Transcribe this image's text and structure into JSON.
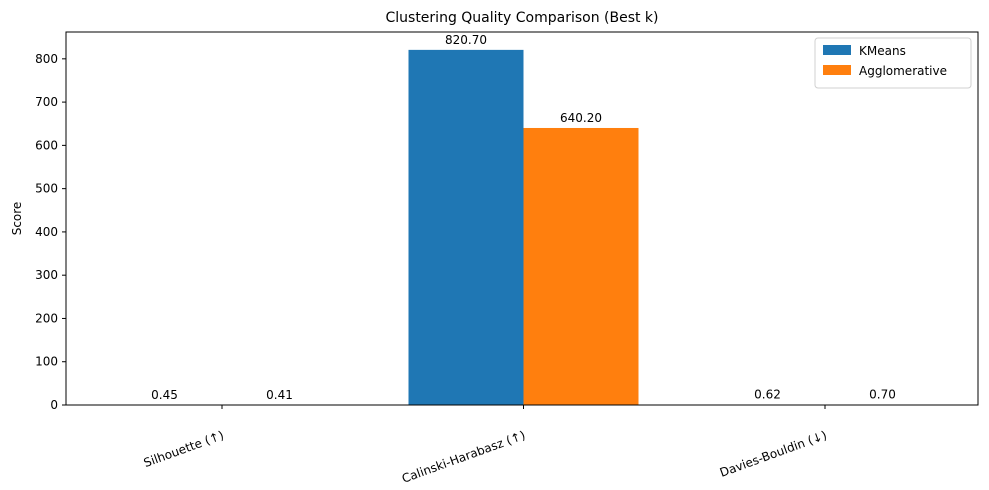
{
  "chart_data": {
    "type": "bar",
    "title": "Clustering Quality Comparison (Best k)",
    "xlabel": "",
    "ylabel": "Score",
    "categories": [
      "Silhouette (↑)",
      "Calinski-Harabasz (↑)",
      "Davies-Bouldin (↓)"
    ],
    "series": [
      {
        "name": "KMeans",
        "color": "#1f77b4",
        "values": [
          0.45,
          820.7,
          0.62
        ]
      },
      {
        "name": "Agglomerative",
        "color": "#ff7f0e",
        "values": [
          0.41,
          640.2,
          0.7
        ]
      }
    ],
    "ylim": [
      0,
      862
    ],
    "yticks": [
      0,
      100,
      200,
      300,
      400,
      500,
      600,
      700,
      800
    ],
    "value_label_format": "2 decimals",
    "legend_position": "top-right",
    "grid": false,
    "xtick_rotation_deg": -20
  }
}
